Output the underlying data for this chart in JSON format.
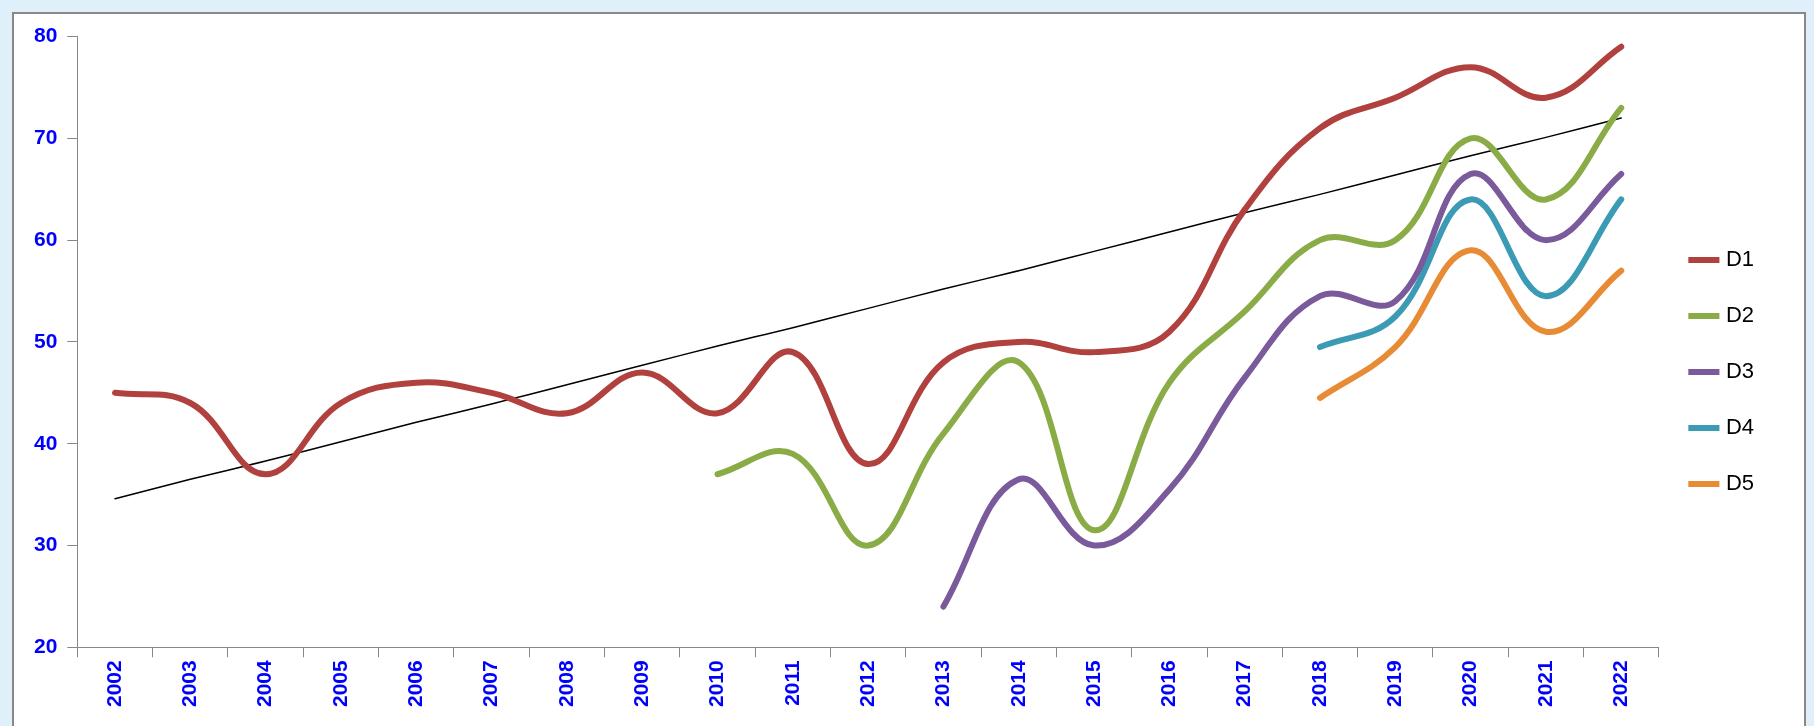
{
  "chart_data": {
    "type": "line",
    "categories": [
      "2002",
      "2003",
      "2004",
      "2005",
      "2006",
      "2007",
      "2008",
      "2009",
      "2010",
      "2011",
      "2012",
      "2013",
      "2014",
      "2015",
      "2016",
      "2017",
      "2018",
      "2019",
      "2020",
      "2021",
      "2022"
    ],
    "ylim": [
      20,
      80
    ],
    "yticks": [
      20,
      30,
      40,
      50,
      60,
      70,
      80
    ],
    "grid": false,
    "legend": "right",
    "marker": "none",
    "line_style": "solid",
    "series": [
      {
        "name": "D1",
        "color": "#b0413e",
        "values": [
          45,
          44,
          37,
          44,
          46,
          45,
          43,
          47,
          43,
          49,
          38,
          48,
          50,
          49,
          51,
          63,
          71,
          74,
          77,
          74,
          79
        ]
      },
      {
        "name": "D2",
        "color": "#8aac47",
        "values": [
          null,
          null,
          null,
          null,
          null,
          null,
          null,
          null,
          37,
          39,
          30,
          41,
          48,
          31.5,
          46,
          53,
          60,
          60,
          70,
          64,
          73
        ]
      },
      {
        "name": "D3",
        "color": "#7a5a9a",
        "values": [
          null,
          null,
          null,
          null,
          null,
          null,
          null,
          null,
          null,
          null,
          null,
          24,
          36.5,
          30,
          35.5,
          46.5,
          54.5,
          54,
          66.5,
          60,
          66.5
        ]
      },
      {
        "name": "D4",
        "color": "#3b9bb4",
        "values": [
          null,
          null,
          null,
          null,
          null,
          null,
          null,
          null,
          null,
          null,
          null,
          null,
          null,
          null,
          null,
          null,
          49.5,
          52.5,
          64,
          54.5,
          64
        ]
      },
      {
        "name": "D5",
        "color": "#e88b35",
        "values": [
          null,
          null,
          null,
          null,
          null,
          null,
          null,
          null,
          null,
          null,
          null,
          null,
          null,
          null,
          null,
          null,
          44.5,
          49.5,
          59,
          51,
          57
        ]
      },
      {
        "type": "line",
        "color": "#000000",
        "values": [
          34.6,
          36.5,
          38.3,
          40.2,
          42.1,
          43.9,
          45.8,
          47.7,
          49.6,
          51.4,
          53.3,
          55.2,
          57.0,
          58.9,
          60.8,
          62.7,
          64.5,
          66.4,
          68.3,
          70.1,
          72.0
        ]
      }
    ]
  }
}
